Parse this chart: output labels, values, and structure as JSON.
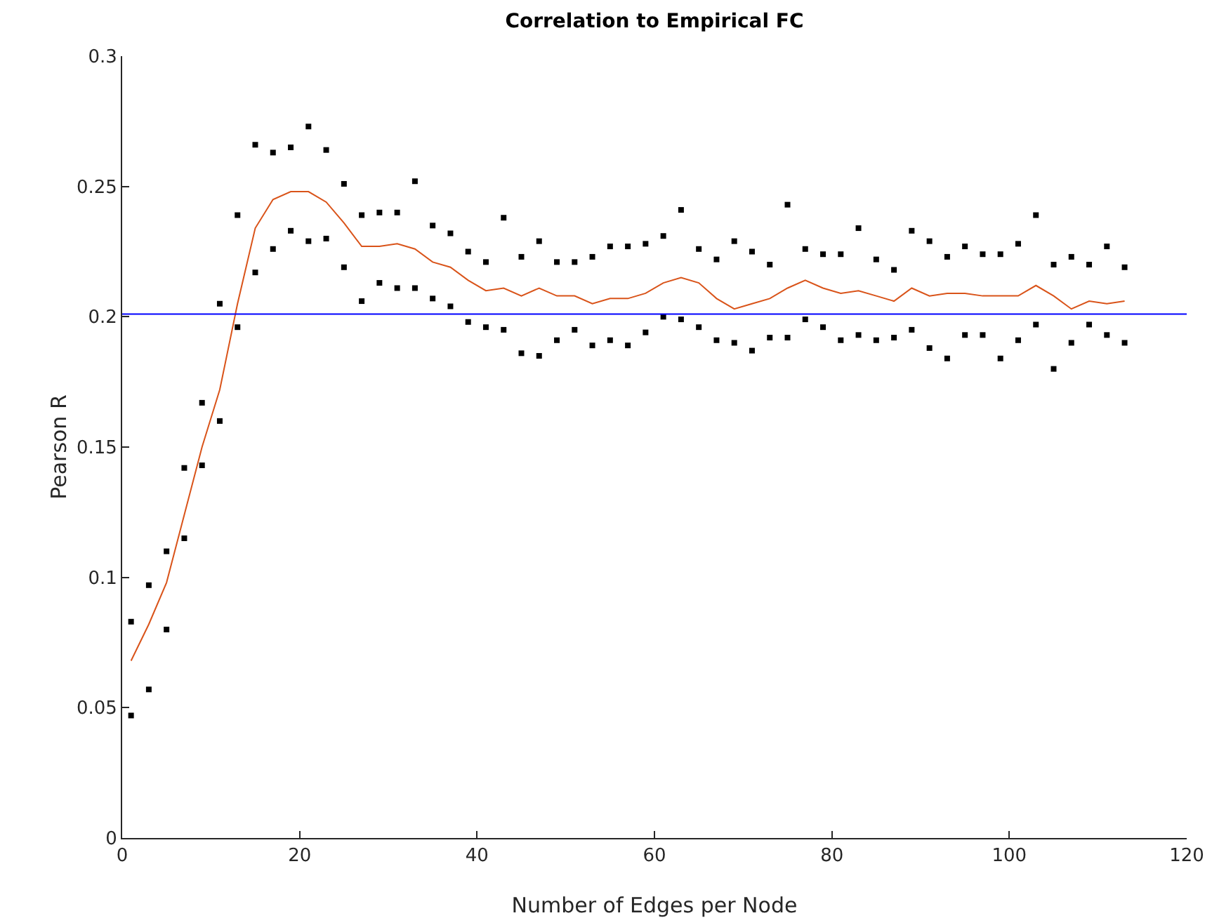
{
  "chart_data": {
    "type": "scatter",
    "title": "Correlation to Empirical FC",
    "xlabel": "Number of Edges per Node",
    "ylabel": "Pearson R",
    "x": [
      1,
      3,
      5,
      7,
      9,
      11,
      13,
      15,
      17,
      19,
      21,
      23,
      25,
      27,
      29,
      31,
      33,
      35,
      37,
      39,
      41,
      43,
      45,
      47,
      49,
      51,
      53,
      55,
      57,
      59,
      61,
      63,
      65,
      67,
      69,
      71,
      73,
      75,
      77,
      79,
      81,
      83,
      85,
      87,
      89,
      91,
      93,
      95,
      97,
      99,
      101,
      103,
      105,
      107,
      109,
      111,
      113
    ],
    "series": [
      {
        "color": "#000000",
        "values": [
          0.083,
          0.097,
          0.11,
          0.142,
          0.167,
          0.205,
          0.239,
          0.266,
          0.263,
          0.265,
          0.273,
          0.264,
          0.251,
          0.239,
          0.24,
          0.24,
          0.252,
          0.235,
          0.232,
          0.225,
          0.221,
          0.238,
          0.223,
          0.229,
          0.221,
          0.221,
          0.223,
          0.227,
          0.227,
          0.228,
          0.231,
          0.241,
          0.226,
          0.222,
          0.229,
          0.225,
          0.22,
          0.243,
          0.226,
          0.224,
          0.224,
          0.234,
          0.222,
          0.218,
          0.233,
          0.229,
          0.223,
          0.227,
          0.224,
          0.224,
          0.228,
          0.239,
          0.22,
          0.223,
          0.22,
          0.227,
          0.219
        ]
      },
      {
        "color": "#000000",
        "values": [
          0.047,
          0.057,
          0.08,
          0.115,
          0.143,
          0.16,
          0.196,
          0.217,
          0.226,
          0.233,
          0.229,
          0.23,
          0.219,
          0.206,
          0.213,
          0.211,
          0.211,
          0.207,
          0.204,
          0.198,
          0.196,
          0.195,
          0.186,
          0.185,
          0.191,
          0.195,
          0.189,
          0.191,
          0.189,
          0.194,
          0.2,
          0.199,
          0.196,
          0.191,
          0.19,
          0.187,
          0.192,
          0.192,
          0.199,
          0.196,
          0.191,
          0.193,
          0.191,
          0.192,
          0.195,
          0.188,
          0.184,
          0.193,
          0.193,
          0.184,
          0.191,
          0.197,
          0.18,
          0.19,
          0.197,
          0.193,
          0.19
        ]
      },
      {
        "type": "line",
        "marker": "none",
        "color": "#d95319",
        "values": [
          0.068,
          0.082,
          0.098,
          0.124,
          0.15,
          0.172,
          0.205,
          0.234,
          0.245,
          0.248,
          0.248,
          0.244,
          0.236,
          0.227,
          0.227,
          0.228,
          0.226,
          0.221,
          0.219,
          0.214,
          0.21,
          0.211,
          0.208,
          0.211,
          0.208,
          0.208,
          0.205,
          0.207,
          0.207,
          0.209,
          0.213,
          0.215,
          0.213,
          0.207,
          0.203,
          0.205,
          0.207,
          0.211,
          0.214,
          0.211,
          0.209,
          0.21,
          0.208,
          0.206,
          0.211,
          0.208,
          0.209,
          0.209,
          0.208,
          0.208,
          0.208,
          0.212,
          0.208,
          0.203,
          0.206,
          0.205,
          0.206
        ]
      }
    ],
    "ref_lines": [
      {
        "axis": "y",
        "value": 0.201,
        "color": "#0000ff"
      }
    ],
    "xlim": [
      0,
      120
    ],
    "xticks": [
      0,
      20,
      40,
      60,
      80,
      100,
      120
    ],
    "ylim": [
      0,
      0.3
    ],
    "yticks": [
      0,
      0.05,
      0.1,
      0.15,
      0.2,
      0.25,
      0.3
    ],
    "grid": false,
    "marker": "square"
  }
}
